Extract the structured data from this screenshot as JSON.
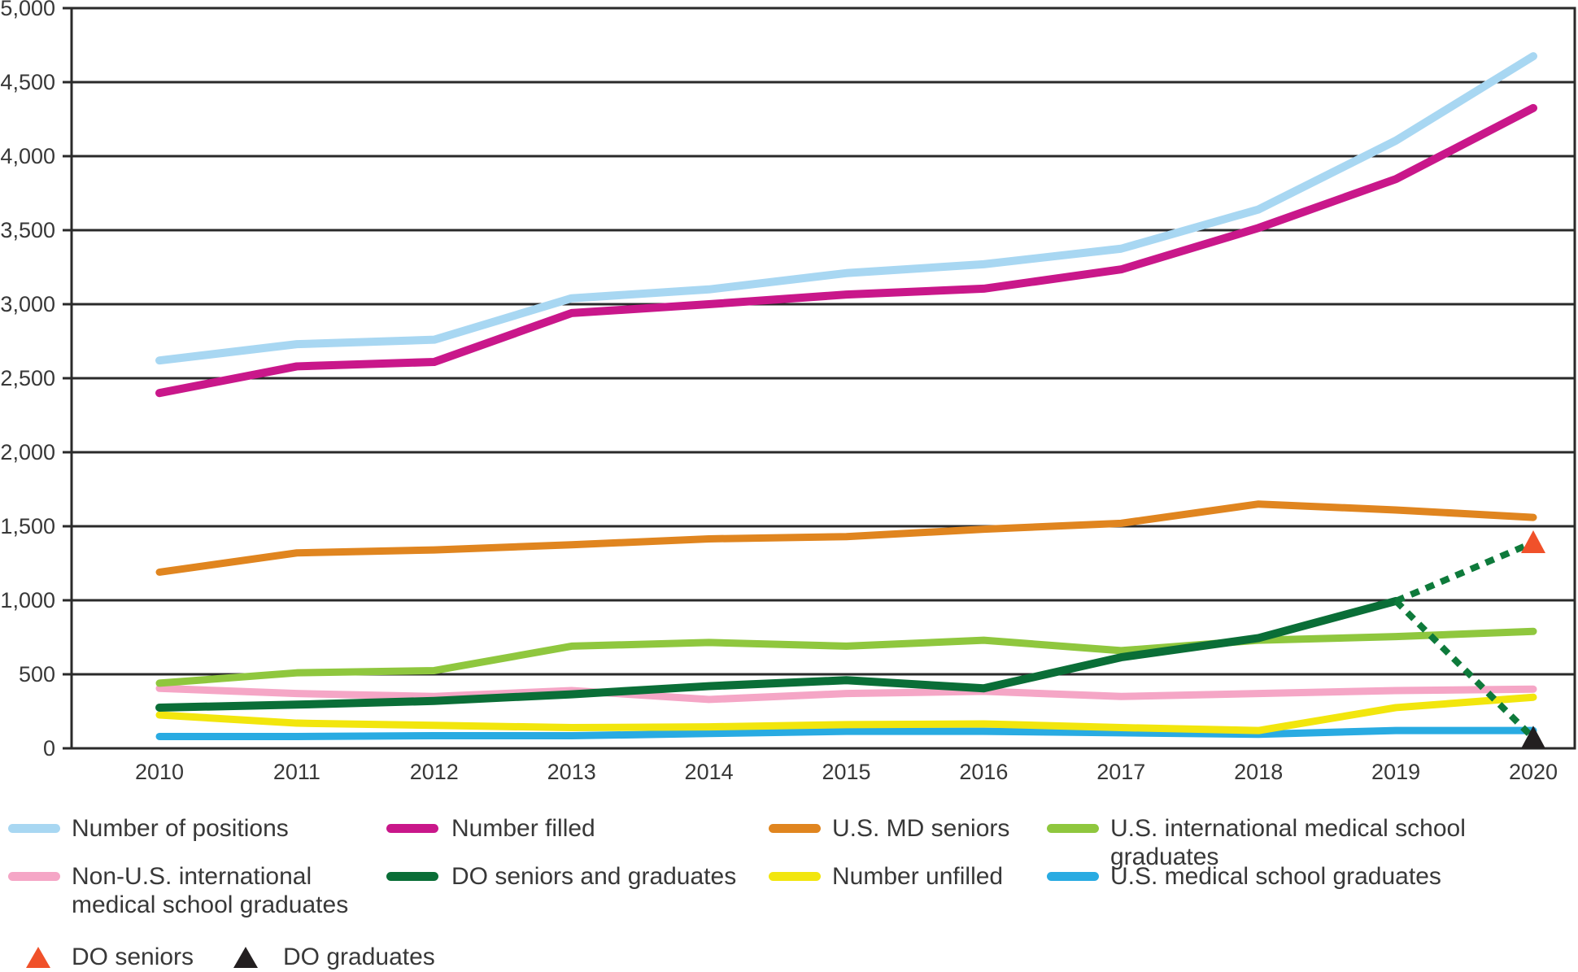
{
  "chart_data": {
    "type": "line",
    "x": [
      2010,
      2011,
      2012,
      2013,
      2014,
      2015,
      2016,
      2017,
      2018,
      2019,
      2020
    ],
    "ylim": [
      0,
      5000
    ],
    "ytick_step": 500,
    "ytick_labels": [
      "0",
      "500",
      "1,000",
      "1,500",
      "2,000",
      "2,500",
      "3,000",
      "3,500",
      "4,000",
      "4,500",
      "5,000"
    ],
    "grid": "horizontal",
    "legend_position": "bottom",
    "series": [
      {
        "name": "Number of positions",
        "color": "#a8d7f2",
        "width": 10,
        "values": [
          2620,
          2730,
          2760,
          3040,
          3100,
          3210,
          3270,
          3375,
          3640,
          4105,
          4675
        ]
      },
      {
        "name": "Number filled",
        "color": "#c9178a",
        "width": 10,
        "values": [
          2400,
          2580,
          2610,
          2940,
          3000,
          3065,
          3105,
          3235,
          3515,
          3845,
          4325
        ]
      },
      {
        "name": "U.S. MD seniors",
        "color": "#e0851f",
        "width": 9,
        "values": [
          1190,
          1320,
          1340,
          1375,
          1415,
          1430,
          1480,
          1520,
          1650,
          1610,
          1560
        ]
      },
      {
        "name": "U.S. medical school graduates",
        "color": "#29abe2",
        "width": 9,
        "values": [
          80,
          80,
          85,
          85,
          100,
          115,
          115,
          105,
          95,
          120,
          120
        ]
      },
      {
        "name": "Number unfilled",
        "color": "#f2e60d",
        "width": 9,
        "values": [
          225,
          170,
          155,
          140,
          145,
          160,
          165,
          140,
          120,
          275,
          345
        ]
      },
      {
        "name": "Non-U.S. international medical school graduates",
        "color": "#f5a6c6",
        "width": 9,
        "values": [
          405,
          370,
          350,
          390,
          330,
          370,
          385,
          350,
          370,
          390,
          400
        ]
      },
      {
        "name": "U.S. international medical school graduates",
        "color": "#8fc73e",
        "width": 9,
        "values": [
          440,
          510,
          525,
          690,
          715,
          690,
          730,
          660,
          730,
          755,
          790
        ]
      },
      {
        "name": "DO seniors and graduates",
        "color": "#0a6e37",
        "width": 10,
        "values": [
          275,
          295,
          320,
          365,
          420,
          460,
          405,
          615,
          745,
          995,
          null
        ]
      }
    ],
    "projections": {
      "color": "#0e7a3b",
      "from": {
        "year": 2019,
        "value": 995
      },
      "targets": [
        {
          "name": "DO seniors",
          "year": 2020,
          "value": 1390,
          "marker": "triangle",
          "marker_color": "#f0512a"
        },
        {
          "name": "DO graduates",
          "year": 2020,
          "value": 70,
          "marker": "triangle",
          "marker_color": "#231f20"
        }
      ]
    }
  },
  "legend": {
    "rows": [
      [
        {
          "type": "line",
          "color": "#a8d7f2",
          "label": "Number of positions"
        },
        {
          "type": "line",
          "color": "#c9178a",
          "label": "Number filled"
        },
        {
          "type": "line",
          "color": "#e0851f",
          "label": "U.S. MD seniors"
        },
        {
          "type": "line",
          "color": "#8fc73e",
          "label": "U.S. international medical school graduates"
        }
      ],
      [
        {
          "type": "line",
          "color": "#f5a6c6",
          "label": "Non-U.S. international\nmedical school graduates"
        },
        {
          "type": "line",
          "color": "#0a6e37",
          "label": "DO seniors and graduates"
        },
        {
          "type": "line",
          "color": "#f2e60d",
          "label": "Number unfilled"
        },
        {
          "type": "line",
          "color": "#29abe2",
          "label": "U.S. medical school graduates"
        }
      ],
      [
        {
          "type": "triangle",
          "color": "#f0512a",
          "label": "DO seniors"
        },
        {
          "type": "triangle",
          "color": "#231f20",
          "label": "DO graduates"
        }
      ]
    ]
  },
  "colors": {
    "grid": "#2a2a2a",
    "text": "#383838",
    "background": "#ffffff"
  }
}
